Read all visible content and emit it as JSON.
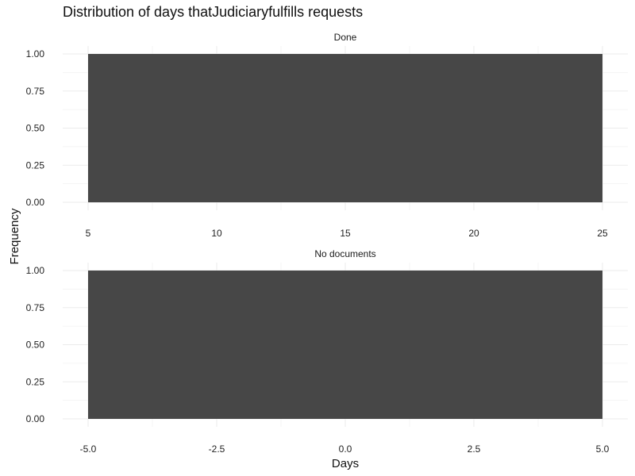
{
  "chart_data": {
    "type": "bar",
    "title": "Distribution of days thatJudiciaryfulfills requests",
    "xlabel": "Days",
    "ylabel": "Frequency",
    "grid": true,
    "bar_color": "#474747",
    "grid_color": "#ebebeb",
    "facets": [
      {
        "strip_label": "Done",
        "bars": [
          {
            "x_start": 5,
            "x_end": 25,
            "count": 1
          }
        ],
        "xlim": [
          5,
          25
        ],
        "ylim": [
          0,
          1
        ],
        "x_ticks": [
          "5",
          "10",
          "15",
          "20",
          "25"
        ],
        "y_ticks": [
          "0.00",
          "0.25",
          "0.50",
          "0.75",
          "1.00"
        ]
      },
      {
        "strip_label": "No documents",
        "bars": [
          {
            "x_start": -5,
            "x_end": 5,
            "count": 1
          }
        ],
        "xlim": [
          -5,
          5
        ],
        "ylim": [
          0,
          1
        ],
        "x_ticks": [
          "-5.0",
          "-2.5",
          "0.0",
          "2.5",
          "5.0"
        ],
        "y_ticks": [
          "0.00",
          "0.25",
          "0.50",
          "0.75",
          "1.00"
        ]
      }
    ]
  }
}
